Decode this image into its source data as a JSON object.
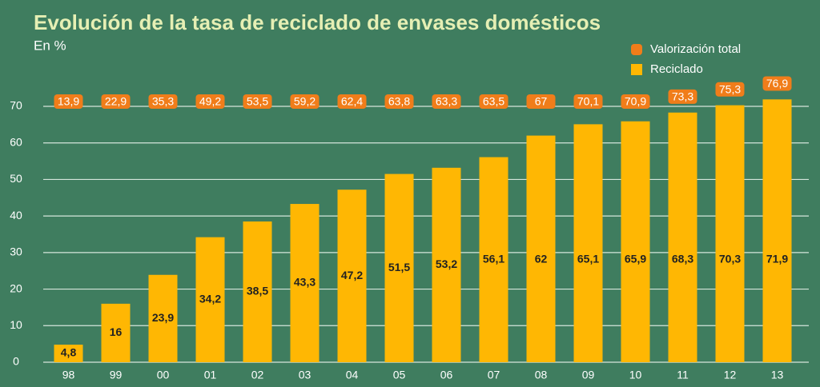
{
  "chart_data": {
    "type": "bar",
    "title": "Evolución de la tasa de reciclado de envases domésticos",
    "subtitle": "En %",
    "categories": [
      "98",
      "99",
      "00",
      "01",
      "02",
      "03",
      "04",
      "05",
      "06",
      "07",
      "08",
      "09",
      "10",
      "11",
      "12",
      "13"
    ],
    "series": [
      {
        "name": "Valorización total",
        "color": "#f07d1a",
        "values": [
          13.9,
          22.9,
          35.3,
          49.2,
          53.5,
          59.2,
          62.4,
          63.8,
          63.3,
          63.5,
          67,
          70.1,
          70.9,
          73.3,
          75.3,
          76.9
        ],
        "value_labels": [
          "13,9",
          "22,9",
          "35,3",
          "49,2",
          "53,5",
          "59,2",
          "62,4",
          "63,8",
          "63,3",
          "63,5",
          "67",
          "70,1",
          "70,9",
          "73,3",
          "75,3",
          "76,9"
        ]
      },
      {
        "name": "Reciclado",
        "color": "#ffb703",
        "values": [
          4.8,
          16,
          23.9,
          34.2,
          38.5,
          43.3,
          47.2,
          51.5,
          53.2,
          56.1,
          62,
          65.1,
          65.9,
          68.3,
          70.3,
          71.9
        ],
        "value_labels": [
          "4,8",
          "16",
          "23,9",
          "34,2",
          "38,5",
          "43,3",
          "47,2",
          "51,5",
          "53,2",
          "56,1",
          "62",
          "65,1",
          "65,9",
          "68,3",
          "70,3",
          "71,9"
        ]
      }
    ],
    "ylim": [
      0,
      70
    ],
    "yticks": [
      0,
      10,
      20,
      30,
      40,
      50,
      60,
      70
    ],
    "grid": true
  }
}
